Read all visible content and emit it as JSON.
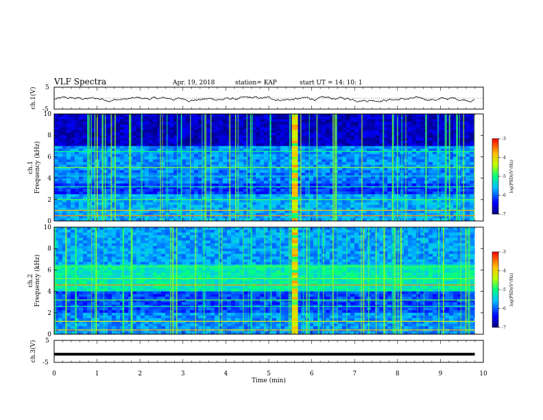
{
  "header": {
    "title": "VLF Spectra",
    "date": "Apr. 19, 2018",
    "station": "station= KAP",
    "start": "start  UT  =   14: 10: 1"
  },
  "colors": {
    "spectrogram_low": "#00007f",
    "spectrogram_mid": "#00ff7f",
    "spectrogram_high": "#ff0000",
    "trace": "#000000"
  },
  "chart_data": [
    {
      "type": "line",
      "name": "ch1-waveform",
      "ylabel": "ch.1(V)",
      "ylim": [
        -5,
        5
      ],
      "yticks": [
        "5",
        "-5"
      ],
      "xlim": [
        0,
        10
      ],
      "description_level": "noisy signal around -0.5 V with ~±1 V excursions",
      "x": [
        0,
        1,
        2,
        3,
        4,
        5,
        6,
        7,
        8,
        9,
        9.8
      ],
      "y": [
        -0.3,
        -0.5,
        -0.2,
        -0.4,
        -0.3,
        -0.6,
        -0.5,
        -0.2,
        -0.4,
        -0.3,
        -0.5
      ]
    },
    {
      "type": "heatmap",
      "name": "ch1-spectrogram",
      "ylabel_top": "ch.1",
      "ylabel": "Frequency (kHz)",
      "ylim": [
        0,
        10
      ],
      "yticks": [
        "0",
        "2",
        "4",
        "6",
        "8",
        "10"
      ],
      "xlim": [
        0,
        10
      ],
      "data_end_min": 9.8,
      "colorbar": {
        "label": "log(PSD)(V²/Hz)",
        "range": [
          -7,
          -3
        ],
        "ticks": [
          "-3",
          "-4",
          "-5",
          "-6",
          "-7"
        ]
      },
      "burst_time_min": 5.6
    },
    {
      "type": "heatmap",
      "name": "ch2-spectrogram",
      "ylabel_top": "ch.2",
      "ylabel": "Frequency (kHz)",
      "ylim": [
        0,
        10
      ],
      "yticks": [
        "0",
        "2",
        "4",
        "6",
        "8",
        "10"
      ],
      "xlim": [
        0,
        10
      ],
      "data_end_min": 9.8,
      "colorbar": {
        "label": "log(PSD)(V²/Hz)",
        "range": [
          -7,
          -3
        ],
        "ticks": [
          "-3",
          "-4",
          "-5",
          "-6",
          "-7"
        ]
      },
      "burst_time_min": 5.6
    },
    {
      "type": "line",
      "name": "ch3-waveform",
      "ylabel": "ch.3(V)",
      "ylim": [
        -5,
        5
      ],
      "yticks": [
        "5",
        "-5"
      ],
      "xlim": [
        0,
        10
      ],
      "x": [
        0,
        9.8
      ],
      "y": [
        -1.3,
        -1.3
      ]
    }
  ],
  "xaxis": {
    "label": "Time (min)",
    "ticks": [
      "0",
      "1",
      "2",
      "3",
      "4",
      "5",
      "6",
      "7",
      "8",
      "9",
      "10"
    ]
  }
}
